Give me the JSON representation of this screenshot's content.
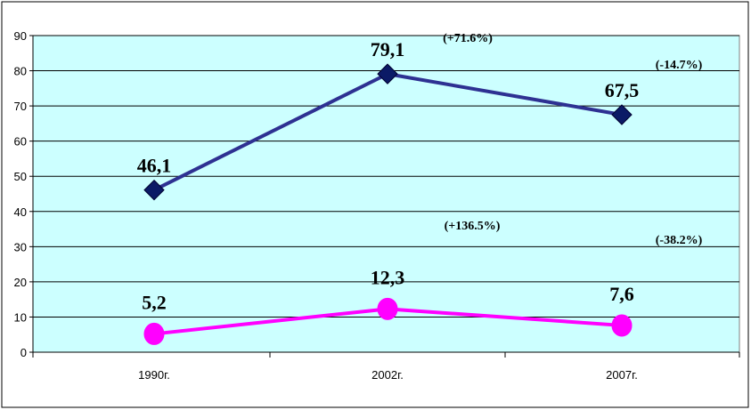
{
  "chart_data": {
    "type": "line",
    "categories": [
      "1990г.",
      "2002г.",
      "2007г."
    ],
    "series": [
      {
        "values": [
          46.1,
          79.1,
          67.5
        ],
        "value_labels": [
          "46,1",
          "79,1",
          "67,5"
        ],
        "color": "#2E3192",
        "marker": "diamond",
        "marker_color": "#0B1A66"
      },
      {
        "values": [
          5.2,
          12.3,
          7.6
        ],
        "value_labels": [
          "5,2",
          "12,3",
          "7,6"
        ],
        "color": "#FF00FF",
        "marker": "circle",
        "marker_color": "#FF00FF"
      }
    ],
    "change_annotations": [
      {
        "series": 0,
        "segment": 0,
        "text": "(+71.6%)"
      },
      {
        "series": 0,
        "segment": 1,
        "text": "(-14.7%)"
      },
      {
        "series": 1,
        "segment": 0,
        "text": "(+136.5%)"
      },
      {
        "series": 1,
        "segment": 1,
        "text": "(-38.2%)"
      }
    ],
    "ylim": [
      0,
      90
    ],
    "yticks": [
      0,
      10,
      20,
      30,
      40,
      50,
      60,
      70,
      80,
      90
    ],
    "ytick_labels": [
      "0",
      "10",
      "20",
      "30",
      "40",
      "50",
      "60",
      "70",
      "80",
      "90"
    ],
    "grid": true,
    "plot_background": "#CCFFFF",
    "gridline_color": "#000000",
    "title": "",
    "xlabel": "",
    "ylabel": ""
  }
}
